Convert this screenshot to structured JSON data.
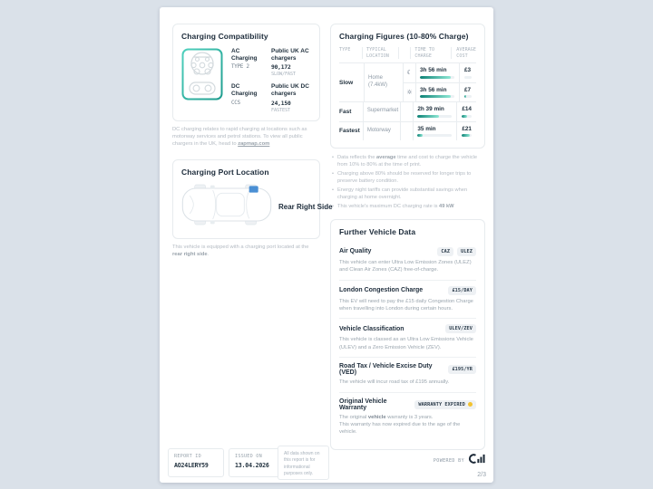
{
  "colors": {
    "accent_teal": "#1d9c8e",
    "accent_teal_light": "#4fd0bd",
    "bar_gradient_start": "#0e8276",
    "bar_gradient_end": "#8fe8d5",
    "port_marker": "#4a8fd4",
    "warning_dot": "#f2c230"
  },
  "compat": {
    "title": "Charging Compatibility",
    "ac": {
      "name": "AC Charging",
      "connector": "TYPE 2",
      "chargers_label": "Public UK AC chargers",
      "count": "90,172",
      "speed": "SLOW/FAST"
    },
    "dc": {
      "name": "DC Charging",
      "connector": "CCS",
      "chargers_label": "Public UK DC chargers",
      "count": "24,150",
      "speed": "FASTEST"
    },
    "note_pre": "DC charging relates to rapid charging at locations such as motorway services and petrol stations. To view all public chargers in the UK, head to ",
    "note_link": "zapmap.com"
  },
  "port": {
    "title": "Charging Port Location",
    "side": "Rear Right Side",
    "caption_pre": "This vehicle is equipped with a charging port located at the ",
    "caption_bold": "rear right side",
    "caption_post": "."
  },
  "figures": {
    "title": "Charging Figures (10-80% Charge)",
    "headers": {
      "type": "TYPE",
      "location": "TYPICAL LOCATION",
      "time": "TIME TO CHARGE",
      "cost": "AVERAGE COST"
    },
    "slow": {
      "type": "Slow",
      "location": "Home (7.4kW)",
      "night": {
        "icon": "☾",
        "time": "3h 56 min",
        "time_pct": 90,
        "cost": "£3",
        "cost_pct": 6
      },
      "day": {
        "icon": "☼",
        "time": "3h 56 min",
        "time_pct": 90,
        "cost": "£7",
        "cost_pct": 22
      }
    },
    "fast": {
      "type": "Fast",
      "location": "Supermarket",
      "time": "2h 39 min",
      "time_pct": 62,
      "cost": "£14",
      "cost_pct": 50
    },
    "fastest": {
      "type": "Fastest",
      "location": "Motorway",
      "time": "35 min",
      "time_pct": 14,
      "cost": "£21",
      "cost_pct": 80
    },
    "notes": {
      "n1_pre": "Data reflects the ",
      "n1_bold": "average",
      "n1_post": " time and cost to charge the vehicle from 10% to 80% at the time of print.",
      "n2": "Charging above 80% should be reserved for longer trips to preserve battery condition.",
      "n3": "Energy night tariffs can provide substantial savings when charging at home overnight.",
      "n4_pre": "This vehicle's maximum DC charging rate is ",
      "n4_bold": "49 kW"
    }
  },
  "further": {
    "title": "Further Vehicle Data",
    "rows": [
      {
        "title": "Air Quality",
        "badge1": "CAZ",
        "badge2": "ULEZ",
        "desc": "This vehicle can enter Ultra Low Emission Zones (ULEZ) and Clean Air Zones (CAZ) free-of-charge."
      },
      {
        "title": "London Congestion Charge",
        "badge1": "£15/DAY",
        "desc": "This EV will need to pay the £15 daily Congestion Charge when travelling into London during certain hours."
      },
      {
        "title": "Vehicle Classification",
        "badge1": "ULEV/ZEV",
        "desc": "This vehicle is classed as an Ultra Low Emissions Vehicle (ULEV) and a Zero Emission Vehicle (ZEV)."
      },
      {
        "title": "Road Tax / Vehicle Excise Duty (VED)",
        "badge1": "£195/YR",
        "desc": "The vehicle will incur road tax of £195 annually."
      },
      {
        "title": "Original Vehicle Warranty",
        "badge1": "WARRANTY EXPIRED",
        "desc_pre": "The original ",
        "desc_bold": "vehicle",
        "desc_post": " warranty is 3 years.",
        "desc_line2": "This warranty has now expired due to the age of the vehicle."
      }
    ]
  },
  "footer": {
    "report_id_label": "REPORT ID",
    "report_id_value": "AO24LERY59",
    "issued_label": "ISSUED ON",
    "issued_value": "13.04.2026",
    "disclaimer": "All data shown on this report is for informational purposes only.",
    "powered_by": "POWERED BY",
    "page_indicator": "2/3"
  }
}
